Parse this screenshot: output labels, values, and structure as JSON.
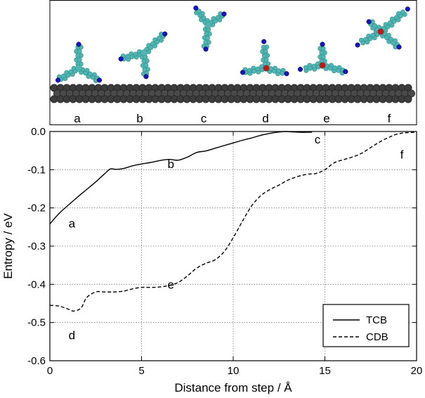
{
  "chart_data": {
    "type": "line",
    "xlabel": "Distance from step / Å",
    "ylabel": "Entropy / eV",
    "xlim": [
      0,
      20
    ],
    "ylim": [
      -0.6,
      0.0
    ],
    "xticks": [
      0,
      5,
      10,
      15,
      20
    ],
    "yticks": [
      0.0,
      -0.1,
      -0.2,
      -0.3,
      -0.4,
      -0.5,
      -0.6
    ],
    "xtick_labels": [
      "0",
      "5",
      "10",
      "15",
      "20"
    ],
    "ytick_labels": [
      "0.0",
      "-0.1",
      "-0.2",
      "-0.3",
      "-0.4",
      "-0.5",
      "-0.6"
    ],
    "grid": true,
    "legend_position": "bottom-right",
    "series": [
      {
        "name": "TCB",
        "style": "solid",
        "x": [
          0,
          0.3,
          0.6,
          1.0,
          1.5,
          2.0,
          2.5,
          3.0,
          3.3,
          3.6,
          4.0,
          4.5,
          5.0,
          5.5,
          6.0,
          6.5,
          7.0,
          7.5,
          8.0,
          8.5,
          9.0,
          9.5,
          10.0,
          10.5,
          11.0,
          11.5,
          12.0,
          12.4,
          12.8,
          13.2,
          13.6,
          14.0,
          14.3
        ],
        "values": [
          -0.242,
          -0.225,
          -0.21,
          -0.193,
          -0.172,
          -0.152,
          -0.132,
          -0.11,
          -0.098,
          -0.099,
          -0.097,
          -0.09,
          -0.085,
          -0.081,
          -0.076,
          -0.073,
          -0.075,
          -0.067,
          -0.055,
          -0.051,
          -0.044,
          -0.037,
          -0.03,
          -0.023,
          -0.017,
          -0.01,
          -0.005,
          -0.002,
          0.0,
          -0.001,
          -0.002,
          -0.002,
          -0.002
        ]
      },
      {
        "name": "CDB",
        "style": "dashed",
        "x": [
          0,
          0.5,
          1.0,
          1.3,
          1.7,
          2.0,
          2.5,
          3.0,
          3.5,
          4.0,
          4.5,
          5.0,
          5.5,
          6.0,
          6.5,
          7.0,
          7.5,
          8.0,
          8.5,
          9.0,
          9.5,
          10.0,
          10.5,
          11.0,
          11.5,
          12.0,
          12.5,
          13.0,
          13.5,
          14.0,
          14.5,
          15.0,
          15.5,
          16.0,
          16.5,
          17.0,
          17.5,
          18.0,
          18.5,
          19.0,
          19.5,
          20.0
        ],
        "values": [
          -0.455,
          -0.457,
          -0.465,
          -0.47,
          -0.462,
          -0.435,
          -0.42,
          -0.42,
          -0.42,
          -0.418,
          -0.412,
          -0.408,
          -0.408,
          -0.407,
          -0.403,
          -0.395,
          -0.378,
          -0.358,
          -0.345,
          -0.336,
          -0.315,
          -0.278,
          -0.235,
          -0.195,
          -0.168,
          -0.152,
          -0.14,
          -0.127,
          -0.118,
          -0.112,
          -0.11,
          -0.1,
          -0.082,
          -0.074,
          -0.067,
          -0.057,
          -0.042,
          -0.027,
          -0.015,
          -0.006,
          -0.003,
          -0.002
        ]
      }
    ],
    "annotations": [
      {
        "text": "a",
        "x": 1.2,
        "y": -0.24
      },
      {
        "text": "b",
        "x": 6.6,
        "y": -0.085
      },
      {
        "text": "c",
        "x": 14.6,
        "y": -0.02
      },
      {
        "text": "d",
        "x": 1.2,
        "y": -0.533
      },
      {
        "text": "e",
        "x": 6.6,
        "y": -0.4
      },
      {
        "text": "f",
        "x": 19.2,
        "y": -0.06
      }
    ]
  },
  "inset": {
    "labels": [
      "a",
      "b",
      "c",
      "d",
      "e",
      "f"
    ]
  },
  "colors": {
    "molecule_carbon": "#4fb6b3",
    "molecule_dark": "#2e8e8c",
    "nitrogen": "#1515c8",
    "oxygen": "#c01818",
    "surface": "#3c3c3c"
  }
}
